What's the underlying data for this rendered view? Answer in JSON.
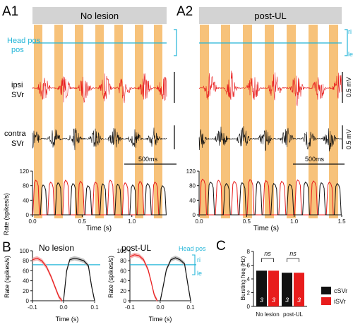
{
  "panels": {
    "A1": {
      "letter": "A1",
      "condition": "No lesion"
    },
    "A2": {
      "letter": "A2",
      "condition": "post-UL"
    },
    "B": {
      "letter": "B"
    },
    "C": {
      "letter": "C"
    }
  },
  "traces": {
    "head_pos": "Head pos",
    "head_pos_ri": "ri",
    "head_pos_le": "le",
    "ipsi_line1": "ipsi",
    "ipsi_line2": "SVr",
    "contra_line1": "contra",
    "contra_line2": "SVr",
    "scale_mv": "0.5 mV",
    "time_scale": "500ms"
  },
  "colors": {
    "head_pos": "#22b5d8",
    "ipsi": "#e81c1c",
    "contra": "#111111",
    "stance_band": "#f7c27a",
    "title_bar": "#d3d3d3"
  },
  "chart_data": [
    {
      "id": "A1-rate",
      "type": "line",
      "title": "",
      "xlabel": "Time (s)",
      "ylabel": "Rate (spikes/s)",
      "xlim": [
        0,
        1.35
      ],
      "ylim": [
        0,
        120
      ],
      "x_ticks": [
        "0.0",
        "0.5",
        "1.0"
      ],
      "y_ticks": [
        "0",
        "40",
        "80",
        "120"
      ],
      "bursts_per_window": 9,
      "series": [
        {
          "peak_values": [
            95,
            90,
            95,
            92,
            90,
            95,
            88,
            92,
            90
          ]
        },
        {
          "peak_values": [
            82,
            88,
            86,
            80,
            85,
            84,
            82,
            86,
            80
          ]
        }
      ]
    },
    {
      "id": "A2-rate",
      "type": "line",
      "title": "",
      "xlabel": "Time (s)",
      "ylabel": "",
      "xlim": [
        0,
        1.5
      ],
      "ylim": [
        0,
        120
      ],
      "x_ticks": [
        "0.0",
        "0.5",
        "1.0",
        "1.5"
      ],
      "y_ticks": [
        "0",
        "40",
        "80",
        "120"
      ],
      "bursts_per_window": 9,
      "series": [
        {
          "peak_values": [
            98,
            95,
            92,
            97,
            94,
            92,
            96,
            93,
            90
          ]
        },
        {
          "peak_values": [
            90,
            86,
            88,
            92,
            86,
            84,
            90,
            88,
            86
          ]
        }
      ]
    },
    {
      "id": "B-no-lesion",
      "type": "line",
      "title": "No lesion",
      "xlabel": "Time (s)",
      "ylabel": "Rate (spikes/s)",
      "xlim": [
        -0.1,
        0.1
      ],
      "ylim": [
        0,
        100
      ],
      "x_ticks": [
        "-0.1",
        "0.0",
        "0.1"
      ],
      "y_ticks": [
        "0",
        "20",
        "40",
        "60",
        "80",
        "100"
      ],
      "series": [
        {
          "x": [
            -0.1,
            -0.085,
            -0.07,
            -0.055,
            -0.04,
            -0.025,
            -0.015,
            -0.005
          ],
          "y": [
            82,
            85,
            80,
            68,
            48,
            24,
            8,
            0
          ]
        },
        {
          "x": [
            0.0,
            0.01,
            0.02,
            0.035,
            0.05,
            0.065,
            0.08,
            0.09,
            0.1
          ],
          "y": [
            0,
            60,
            82,
            85,
            83,
            80,
            70,
            30,
            0
          ]
        }
      ]
    },
    {
      "id": "B-post-UL",
      "type": "line",
      "title": "post-UL",
      "xlabel": "Time (s)",
      "ylabel": "Rate (spikes/s)",
      "xlim": [
        -0.1,
        0.1
      ],
      "ylim": [
        0,
        100
      ],
      "x_ticks": [
        "-0.1",
        "0.0",
        "0.1"
      ],
      "y_ticks": [
        "0",
        "20",
        "40",
        "60",
        "80",
        "100"
      ],
      "series": [
        {
          "x": [
            -0.1,
            -0.085,
            -0.07,
            -0.055,
            -0.04,
            -0.03,
            -0.02,
            -0.01
          ],
          "y": [
            88,
            92,
            90,
            82,
            62,
            38,
            12,
            0
          ]
        },
        {
          "x": [
            0.0,
            0.01,
            0.02,
            0.035,
            0.05,
            0.065,
            0.08,
            0.09,
            0.1
          ],
          "y": [
            0,
            30,
            62,
            82,
            86,
            82,
            74,
            36,
            0
          ]
        }
      ]
    },
    {
      "id": "C-bursting",
      "type": "bar",
      "title": "",
      "ylabel": "Bursting freq (Hz)",
      "ylim": [
        0,
        8
      ],
      "y_ticks": [
        "0",
        "2",
        "4",
        "6",
        "8"
      ],
      "groups": [
        "No lesion",
        "post-UL"
      ],
      "series": [
        {
          "name": "cSVr",
          "values": [
            5.2,
            4.9
          ],
          "n": [
            "3",
            "3"
          ]
        },
        {
          "name": "iSVr",
          "values": [
            5.2,
            4.9
          ],
          "n": [
            "3",
            "3"
          ]
        }
      ],
      "significance": [
        "ns",
        "ns"
      ]
    }
  ]
}
